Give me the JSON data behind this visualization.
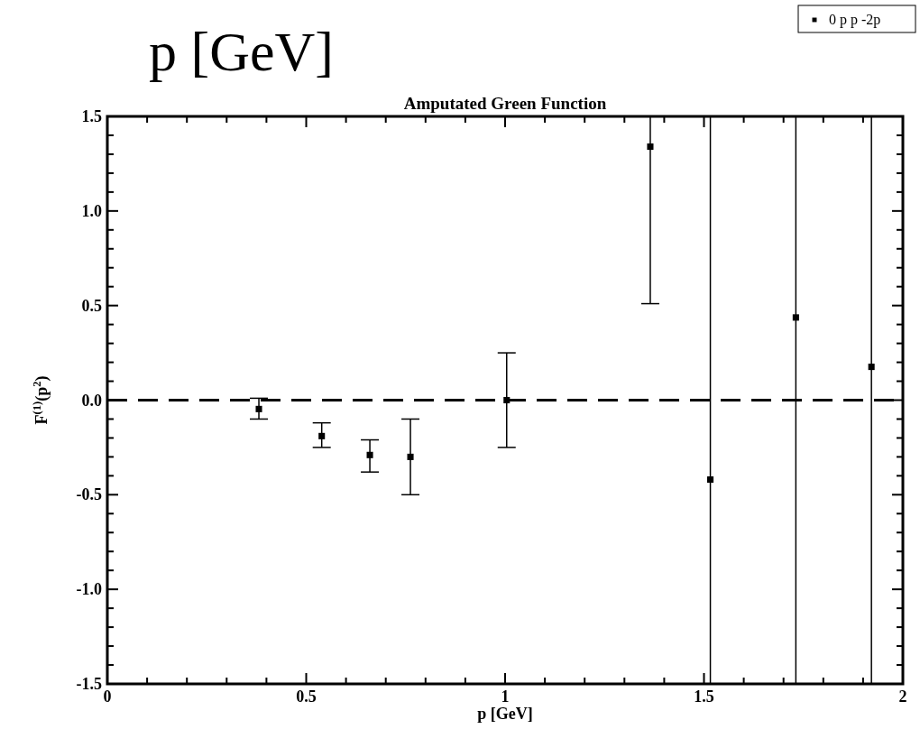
{
  "chart_data": {
    "type": "scatter",
    "title": "Amputated Green Function",
    "xlabel": "p  [GeV]",
    "ylabel": "F$^{(1)}$(p$^{2}$)",
    "annotations": [
      "p [GeV]"
    ],
    "x": [
      0.381,
      0.539,
      0.66,
      0.762,
      1.004,
      1.365,
      1.516,
      1.731,
      1.921
    ],
    "series": [
      {
        "name": "0 p p -2p",
        "color": "#000000",
        "values": [
          -0.047,
          -0.19,
          -0.29,
          -0.3,
          0.0,
          1.34,
          -0.42,
          0.437,
          0.176
        ],
        "errors": [
          [
            -0.1,
            0.01
          ],
          [
            -0.25,
            -0.12
          ],
          [
            -0.38,
            -0.21
          ],
          [
            -0.5,
            -0.1
          ],
          [
            -0.25,
            0.25
          ],
          [
            0.51,
            1.5
          ],
          [
            -1.5,
            1.5
          ],
          [
            -1.5,
            1.5
          ],
          [
            -1.5,
            1.5
          ]
        ]
      }
    ],
    "xlim": [
      0,
      2
    ],
    "xticks": [
      0,
      {
        "value": 0.1,
        "label": null
      },
      {
        "value": 0.2,
        "label": null
      },
      {
        "value": 0.3,
        "label": null
      },
      {
        "value": 0.4,
        "label": null
      },
      0.5,
      {
        "value": 0.6,
        "label": null
      },
      {
        "value": 0.7,
        "label": null
      },
      {
        "value": 0.8,
        "label": null
      },
      {
        "value": 0.9,
        "label": null
      },
      1,
      {
        "value": 1.1,
        "label": null
      },
      {
        "value": 1.2,
        "label": null
      },
      {
        "value": 1.3,
        "label": null
      },
      {
        "value": 1.4,
        "label": null
      },
      1.5,
      {
        "value": 1.6,
        "label": null
      },
      {
        "value": 1.7,
        "label": null
      },
      {
        "value": 1.8,
        "label": null
      },
      {
        "value": 1.9,
        "label": null
      },
      2
    ],
    "ylim": [
      -1.5,
      1.5
    ],
    "yticks": [
      {
        "value": -1.5,
        "label": "-1.5"
      },
      {
        "value": -1.4,
        "label": null
      },
      {
        "value": -1.3,
        "label": null
      },
      {
        "value": -1.2,
        "label": null
      },
      {
        "value": -1.1,
        "label": null
      },
      {
        "value": -1,
        "label": "-1.0"
      },
      {
        "value": -0.9,
        "label": null
      },
      {
        "value": -0.8,
        "label": null
      },
      {
        "value": -0.7,
        "label": null
      },
      {
        "value": -0.6,
        "label": null
      },
      {
        "value": -0.5,
        "label": "-0.5"
      },
      {
        "value": -0.4,
        "label": null
      },
      {
        "value": -0.3,
        "label": null
      },
      {
        "value": -0.2,
        "label": null
      },
      {
        "value": -0.1,
        "label": null
      },
      {
        "value": 0,
        "label": "0.0"
      },
      {
        "value": 0.1,
        "label": null
      },
      {
        "value": 0.2,
        "label": null
      },
      {
        "value": 0.3,
        "label": null
      },
      {
        "value": 0.4,
        "label": null
      },
      {
        "value": 0.5,
        "label": "0.5"
      },
      {
        "value": 0.6,
        "label": null
      },
      {
        "value": 0.7,
        "label": null
      },
      {
        "value": 0.8,
        "label": null
      },
      {
        "value": 0.9,
        "label": null
      },
      {
        "value": 1,
        "label": "1.0"
      },
      {
        "value": 1.1,
        "label": null
      },
      {
        "value": 1.2,
        "label": null
      },
      {
        "value": 1.3,
        "label": null
      },
      {
        "value": 1.4,
        "label": null
      },
      {
        "value": 1.5,
        "label": "1.5"
      }
    ],
    "ref_lines": [
      {
        "axis": "y",
        "value": 0,
        "line_style": "dashed",
        "color": "#000000"
      }
    ],
    "grid": false,
    "legend": "top right",
    "marker": "square"
  }
}
